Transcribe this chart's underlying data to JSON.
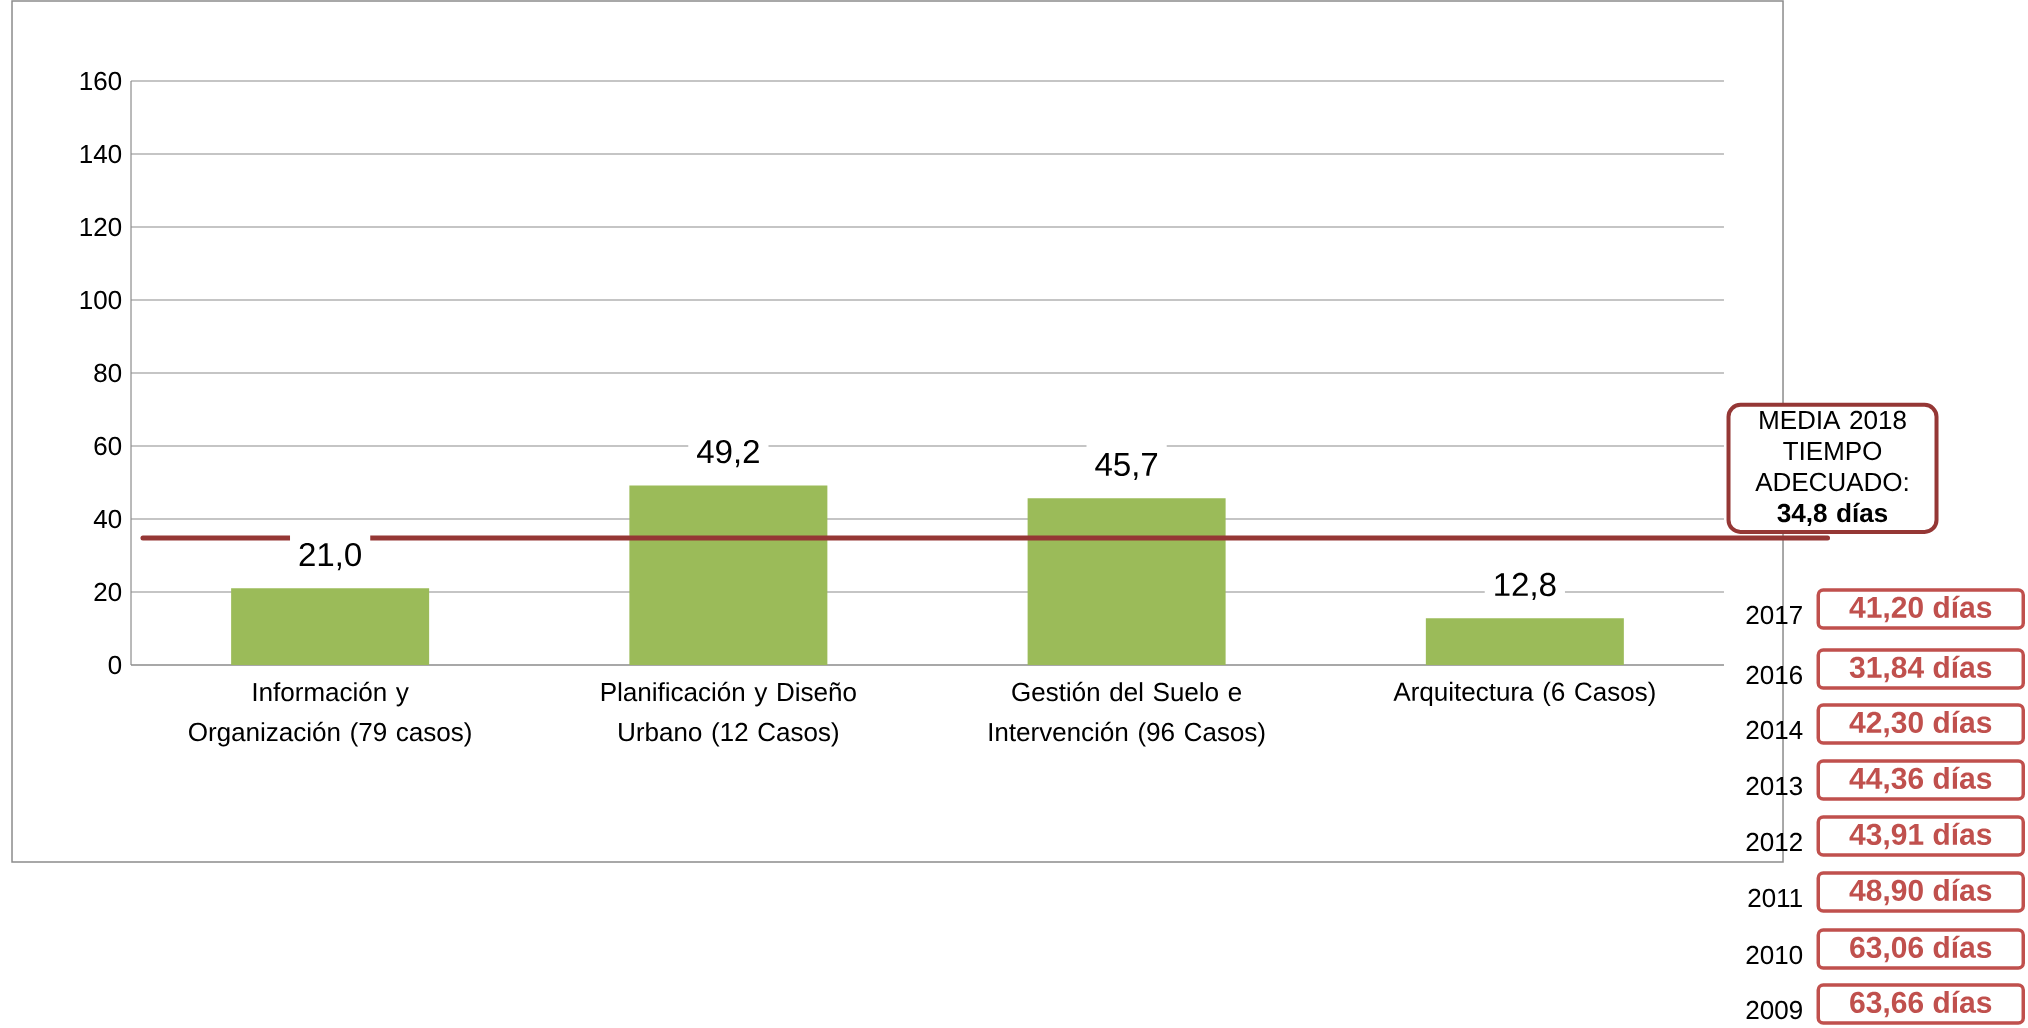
{
  "chart_data": {
    "type": "bar",
    "categories": [
      "Información y Organización (79 casos)",
      "Planificación y Diseño Urbano (12 Casos)",
      "Gestión del Suelo e Intervención (96 Casos)",
      "Arquitectura (6 Casos)"
    ],
    "values": [
      21.0,
      49.2,
      45.7,
      12.8
    ],
    "value_labels": [
      "21,0",
      "49,2",
      "45,7",
      "12,8"
    ],
    "color": "#9bbb59",
    "ylim": [
      0,
      160
    ],
    "yticks": [
      0,
      20,
      40,
      60,
      80,
      100,
      120,
      140,
      160
    ],
    "grid": "y",
    "ref_lines": [
      {
        "axis": "y",
        "value": 34.8,
        "label": "MEDIA 2018 TIEMPO ADECUADO: **34,8 días**",
        "color": "#953735"
      }
    ],
    "annotations": [
      "2017",
      "41,20 días",
      "2016",
      "31,84 días",
      "2014",
      "42,30 días",
      "2013",
      "44,36 días",
      "2012",
      "43,91 días",
      "2011",
      "48,90 días",
      "2010",
      "63,06 días",
      "2009",
      "63,66 días"
    ]
  }
}
